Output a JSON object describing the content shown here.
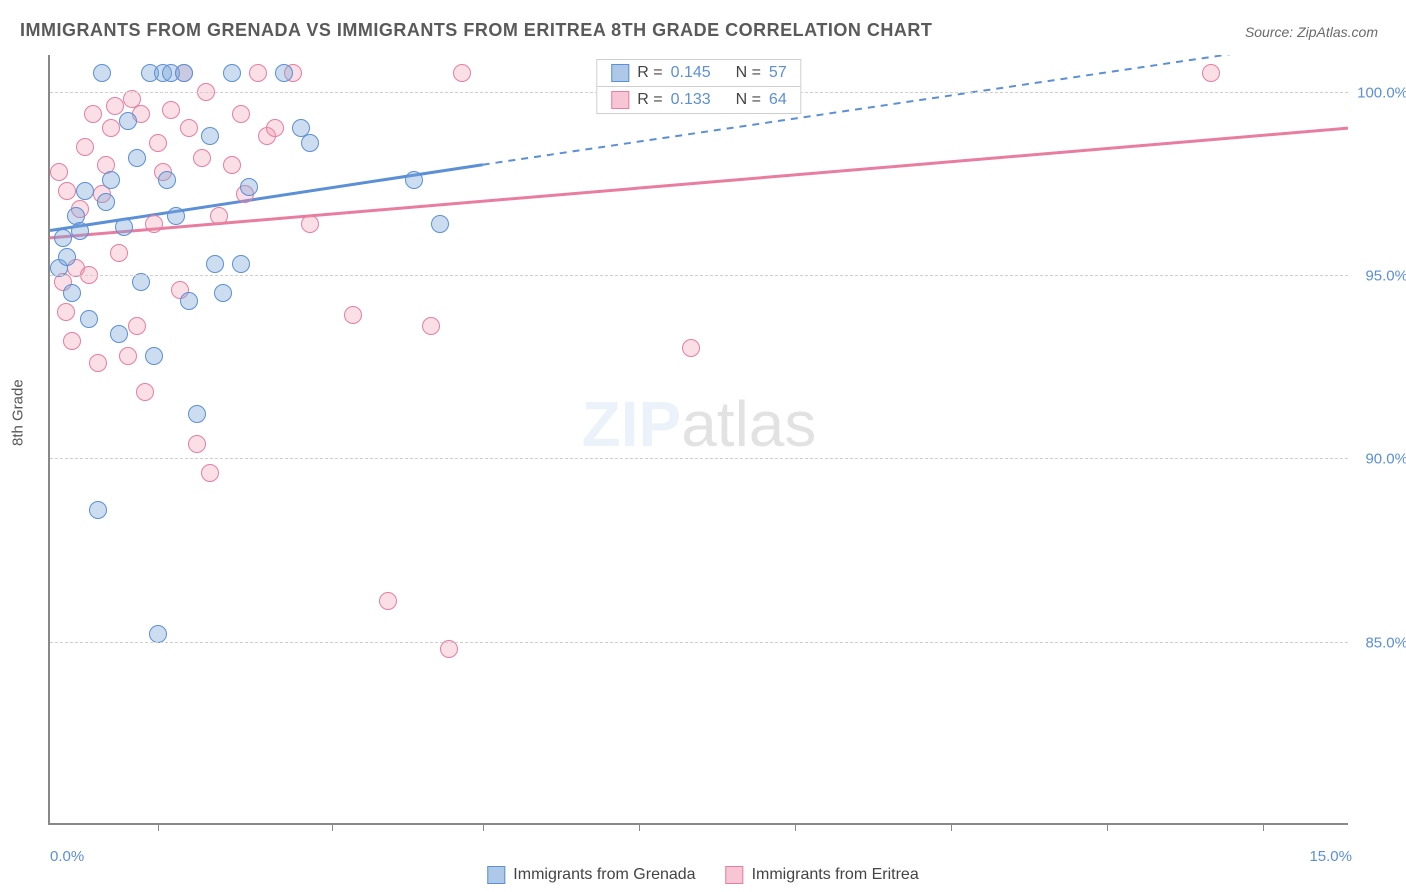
{
  "title": "IMMIGRANTS FROM GRENADA VS IMMIGRANTS FROM ERITREA 8TH GRADE CORRELATION CHART",
  "source": "Source: ZipAtlas.com",
  "ylabel": "8th Grade",
  "watermark_zip": "ZIP",
  "watermark_atlas": "atlas",
  "chart": {
    "type": "scatter",
    "xlim": [
      0,
      15
    ],
    "ylim": [
      80,
      101
    ],
    "yticks": [
      {
        "v": 85,
        "label": "85.0%"
      },
      {
        "v": 90,
        "label": "90.0%"
      },
      {
        "v": 95,
        "label": "95.0%"
      },
      {
        "v": 100,
        "label": "100.0%"
      }
    ],
    "xticks_minor": [
      1.25,
      3.25,
      5.0,
      6.8,
      8.6,
      10.4,
      12.2,
      14.0
    ],
    "x_left_label": "0.0%",
    "x_right_label": "15.0%",
    "colors": {
      "series1": "#5b8fd6",
      "series1_fill": "rgba(120,165,216,0.38)",
      "series2": "#e87da0",
      "series2_fill": "rgba(240,150,175,0.30)",
      "grid": "#cfcfcf",
      "axis": "#888888",
      "background": "#ffffff",
      "tick_text": "#5b8fd6"
    },
    "marker_size": 18,
    "line_width_solid": 3,
    "line_width_dash": 2,
    "series1": {
      "name": "Immigrants from Grenada",
      "R": "0.145",
      "N": "57",
      "trend_y_at_x0": 96.2,
      "trend_y_at_x5": 98.0,
      "trend_y_at_x15": 101.5,
      "points": [
        [
          0.1,
          95.2
        ],
        [
          0.15,
          96.0
        ],
        [
          0.2,
          95.5
        ],
        [
          0.25,
          94.5
        ],
        [
          0.3,
          96.6
        ],
        [
          0.35,
          96.2
        ],
        [
          0.4,
          97.3
        ],
        [
          0.45,
          93.8
        ],
        [
          0.55,
          88.6
        ],
        [
          0.6,
          100.5
        ],
        [
          0.65,
          97.0
        ],
        [
          0.7,
          97.6
        ],
        [
          0.8,
          93.4
        ],
        [
          0.85,
          96.3
        ],
        [
          0.9,
          99.2
        ],
        [
          1.0,
          98.2
        ],
        [
          1.05,
          94.8
        ],
        [
          1.15,
          100.5
        ],
        [
          1.2,
          92.8
        ],
        [
          1.25,
          85.2
        ],
        [
          1.3,
          100.5
        ],
        [
          1.35,
          97.6
        ],
        [
          1.4,
          100.5
        ],
        [
          1.45,
          96.6
        ],
        [
          1.55,
          100.5
        ],
        [
          1.6,
          94.3
        ],
        [
          1.7,
          91.2
        ],
        [
          1.85,
          98.8
        ],
        [
          1.9,
          95.3
        ],
        [
          2.0,
          94.5
        ],
        [
          2.1,
          100.5
        ],
        [
          2.2,
          95.3
        ],
        [
          2.3,
          97.4
        ],
        [
          2.7,
          100.5
        ],
        [
          2.9,
          99.0
        ],
        [
          3.0,
          98.6
        ],
        [
          4.2,
          97.6
        ],
        [
          4.5,
          96.4
        ]
      ]
    },
    "series2": {
      "name": "Immigrants from Eritrea",
      "R": "0.133",
      "N": "64",
      "trend_y_at_x0": 96.0,
      "trend_y_at_x15": 99.0,
      "points": [
        [
          0.1,
          97.8
        ],
        [
          0.15,
          94.8
        ],
        [
          0.18,
          94.0
        ],
        [
          0.2,
          97.3
        ],
        [
          0.25,
          93.2
        ],
        [
          0.3,
          95.2
        ],
        [
          0.35,
          96.8
        ],
        [
          0.4,
          98.5
        ],
        [
          0.45,
          95.0
        ],
        [
          0.5,
          99.4
        ],
        [
          0.55,
          92.6
        ],
        [
          0.6,
          97.2
        ],
        [
          0.65,
          98.0
        ],
        [
          0.7,
          99.0
        ],
        [
          0.75,
          99.6
        ],
        [
          0.8,
          95.6
        ],
        [
          0.9,
          92.8
        ],
        [
          0.95,
          99.8
        ],
        [
          1.0,
          93.6
        ],
        [
          1.05,
          99.4
        ],
        [
          1.1,
          91.8
        ],
        [
          1.2,
          96.4
        ],
        [
          1.25,
          98.6
        ],
        [
          1.3,
          97.8
        ],
        [
          1.4,
          99.5
        ],
        [
          1.5,
          94.6
        ],
        [
          1.55,
          100.5
        ],
        [
          1.6,
          99.0
        ],
        [
          1.7,
          90.4
        ],
        [
          1.75,
          98.2
        ],
        [
          1.8,
          100.0
        ],
        [
          1.85,
          89.6
        ],
        [
          1.95,
          96.6
        ],
        [
          2.1,
          98.0
        ],
        [
          2.2,
          99.4
        ],
        [
          2.25,
          97.2
        ],
        [
          2.4,
          100.5
        ],
        [
          2.5,
          98.8
        ],
        [
          2.6,
          99.0
        ],
        [
          2.8,
          100.5
        ],
        [
          3.0,
          96.4
        ],
        [
          3.5,
          93.9
        ],
        [
          3.9,
          86.1
        ],
        [
          4.4,
          93.6
        ],
        [
          4.6,
          84.8
        ],
        [
          4.75,
          100.5
        ],
        [
          7.4,
          93.0
        ],
        [
          13.4,
          100.5
        ]
      ]
    }
  },
  "legend_top": {
    "r_label": "R =",
    "n_label": "N ="
  }
}
